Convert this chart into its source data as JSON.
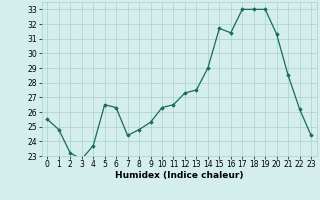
{
  "x": [
    0,
    1,
    2,
    3,
    4,
    5,
    6,
    7,
    8,
    9,
    10,
    11,
    12,
    13,
    14,
    15,
    16,
    17,
    18,
    19,
    20,
    21,
    22,
    23
  ],
  "y": [
    25.5,
    24.8,
    23.2,
    22.8,
    23.7,
    26.5,
    26.3,
    24.4,
    24.8,
    25.3,
    26.3,
    26.5,
    27.3,
    27.5,
    29.0,
    31.7,
    31.4,
    33.0,
    33.0,
    33.0,
    31.3,
    28.5,
    26.2,
    24.4
  ],
  "xlabel": "Humidex (Indice chaleur)",
  "ylim": [
    23,
    33.5
  ],
  "xlim": [
    -0.5,
    23.5
  ],
  "yticks": [
    23,
    24,
    25,
    26,
    27,
    28,
    29,
    30,
    31,
    32,
    33
  ],
  "xticks": [
    0,
    1,
    2,
    3,
    4,
    5,
    6,
    7,
    8,
    9,
    10,
    11,
    12,
    13,
    14,
    15,
    16,
    17,
    18,
    19,
    20,
    21,
    22,
    23
  ],
  "line_color": "#1a6b5a",
  "marker": "D",
  "marker_size": 1.8,
  "bg_color": "#d4eeee",
  "grid_color": "#aacfcf",
  "label_fontsize": 6.5,
  "tick_fontsize": 5.5,
  "linewidth": 0.9
}
